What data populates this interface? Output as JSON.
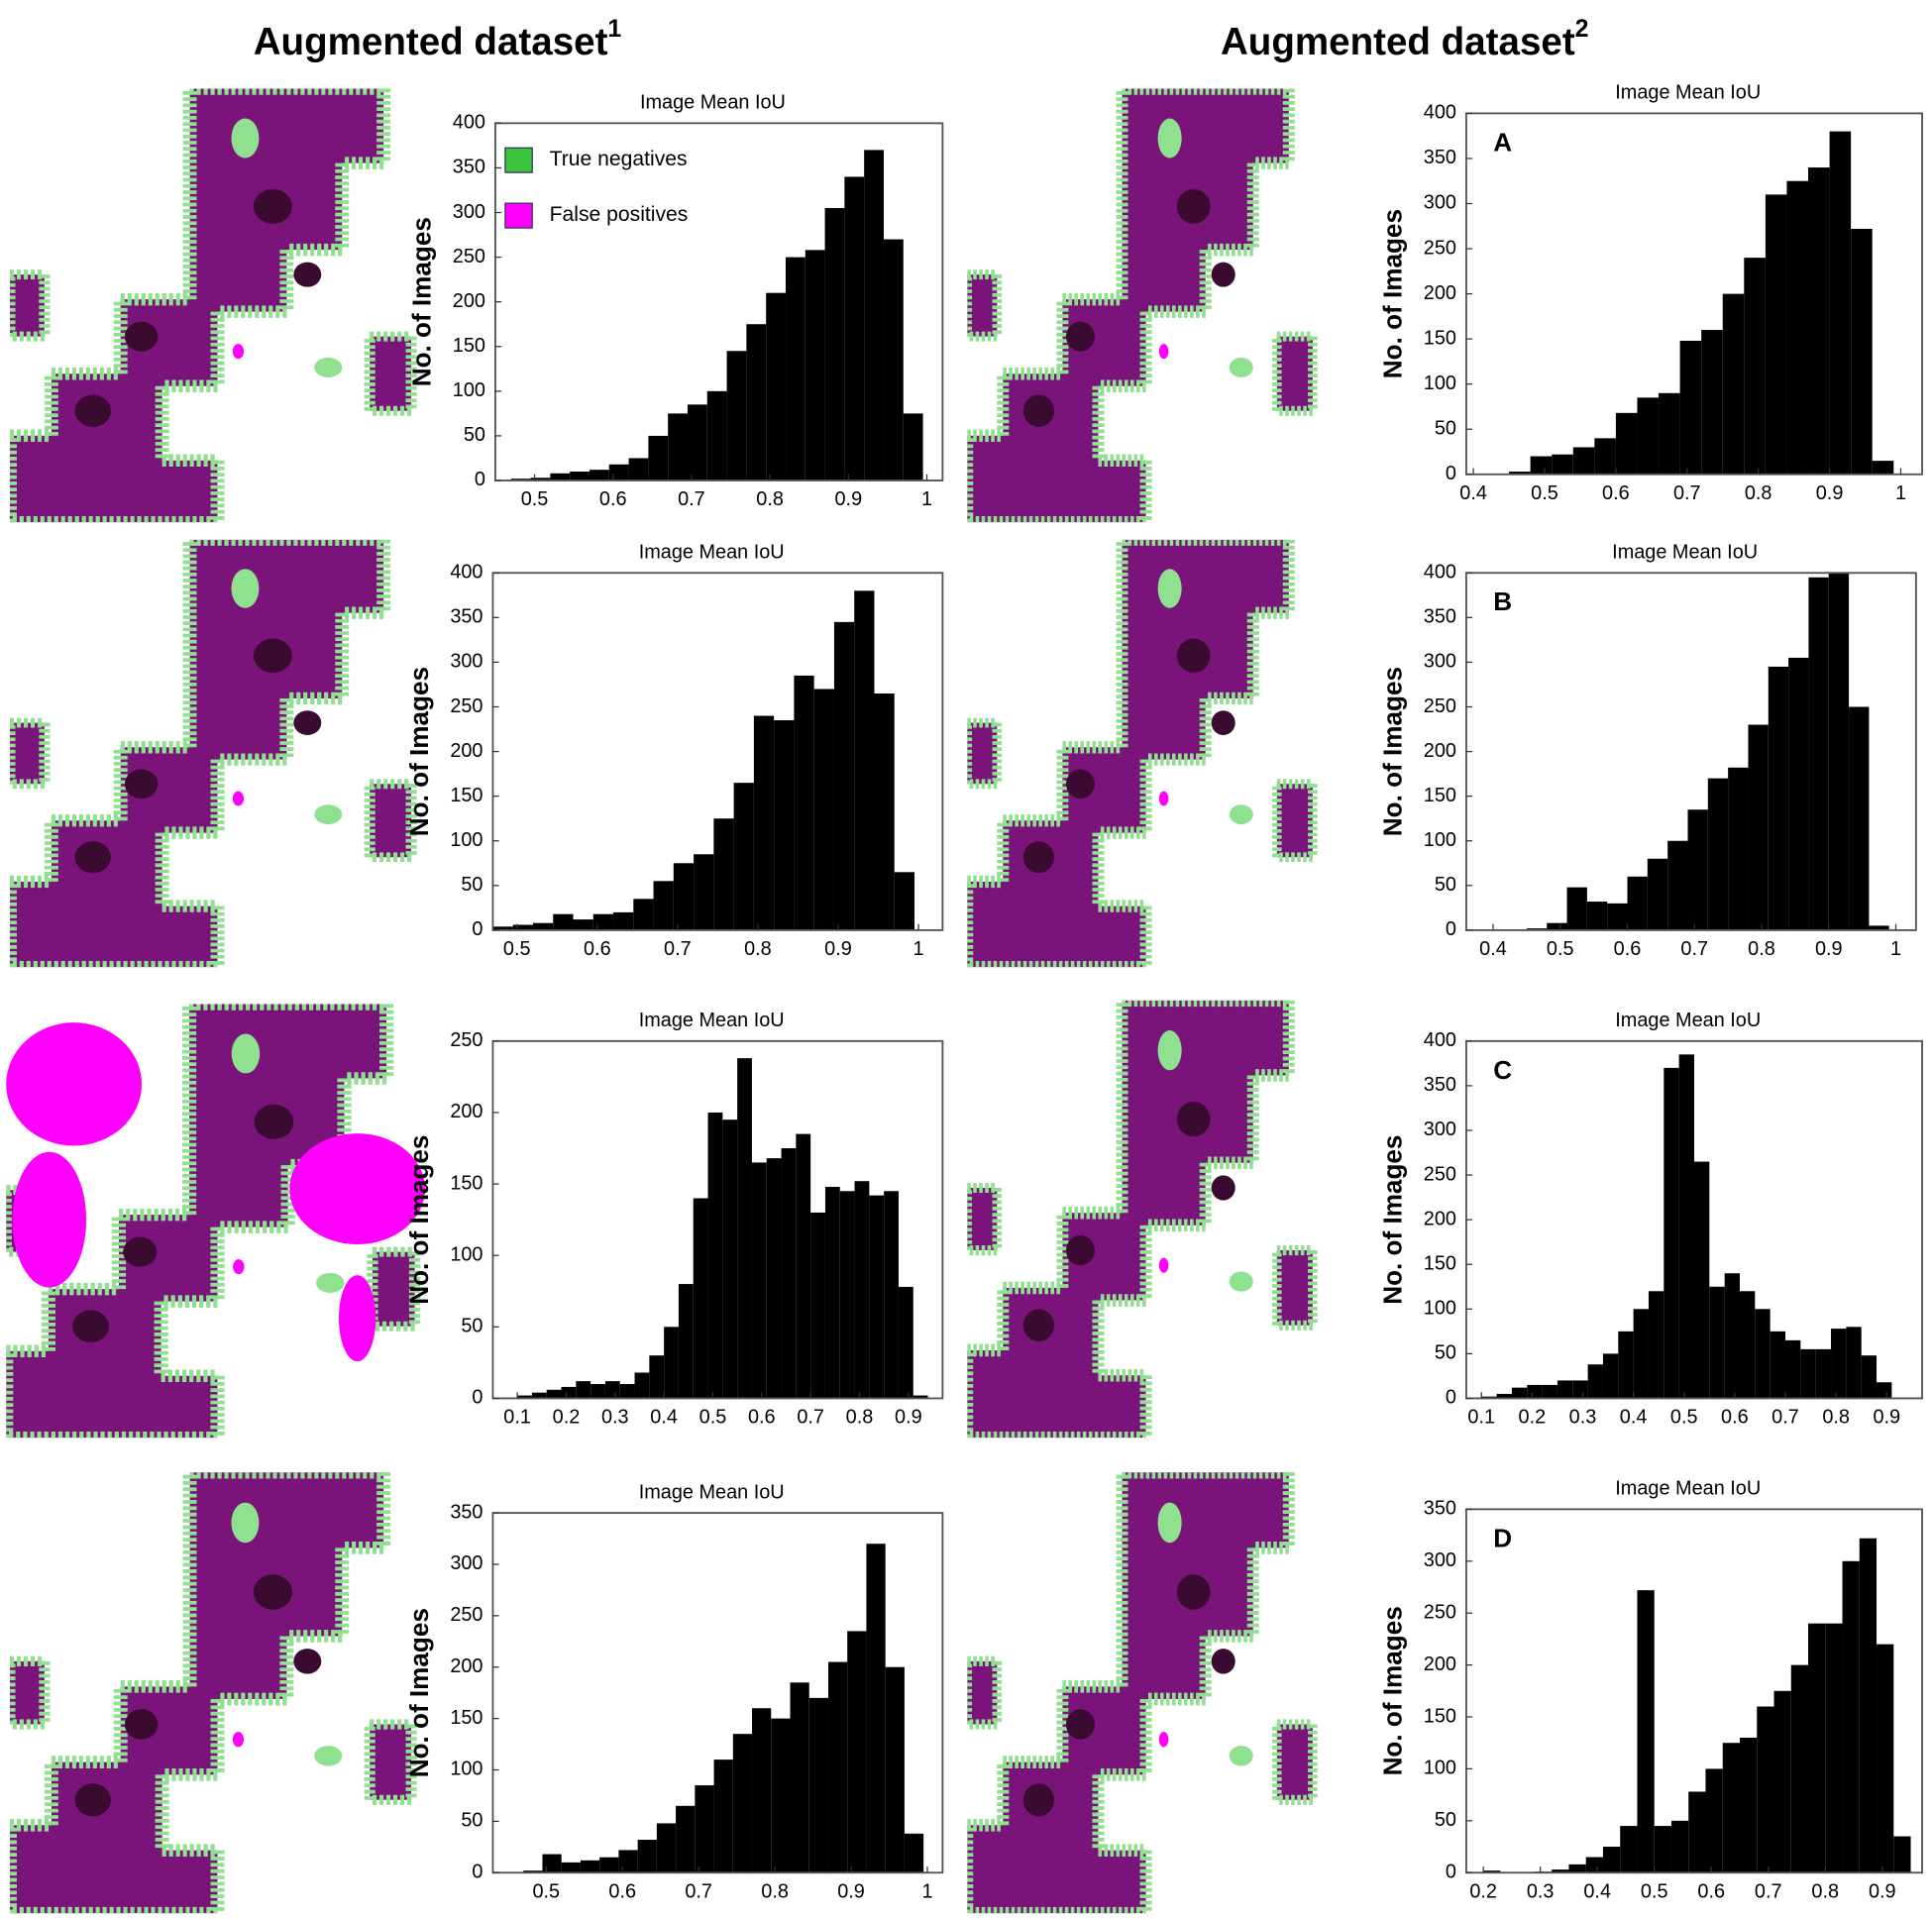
{
  "headings": [
    {
      "text": "Augmented dataset",
      "sup": "1"
    },
    {
      "text": "Augmented dataset",
      "sup": "2"
    }
  ],
  "chart_data": [
    {
      "type": "histogram",
      "title": "Image Mean IoU",
      "ylabel": "No. of Images",
      "color": "#000000",
      "legend": [
        {
          "name": "True negatives",
          "color": "#3cc43c"
        },
        {
          "name": "False positives",
          "color": "#ff00ff"
        }
      ],
      "bins": [
        0.47,
        0.495,
        0.52,
        0.545,
        0.57,
        0.595,
        0.62,
        0.645,
        0.67,
        0.695,
        0.72,
        0.745,
        0.77,
        0.795,
        0.82,
        0.845,
        0.87,
        0.895,
        0.92,
        0.945,
        0.97,
        0.995
      ],
      "values": [
        2,
        3,
        8,
        10,
        12,
        18,
        25,
        50,
        75,
        85,
        100,
        145,
        175,
        210,
        250,
        258,
        305,
        340,
        370,
        270,
        75
      ],
      "xlim": [
        0.45,
        1.02
      ],
      "xticks": [
        0.5,
        0.6,
        0.7,
        0.8,
        0.9,
        1
      ],
      "ylim": [
        0,
        400
      ],
      "yticks": [
        0,
        50,
        100,
        150,
        200,
        250,
        300,
        350,
        400
      ]
    },
    {
      "type": "histogram",
      "title": "Image Mean IoU",
      "ylabel": "No. of Images",
      "label": "A",
      "color": "#000000",
      "bins": [
        0.45,
        0.48,
        0.51,
        0.54,
        0.57,
        0.6,
        0.63,
        0.66,
        0.69,
        0.72,
        0.75,
        0.78,
        0.81,
        0.84,
        0.87,
        0.9,
        0.93,
        0.96,
        0.99
      ],
      "values": [
        3,
        20,
        22,
        30,
        40,
        68,
        85,
        90,
        148,
        160,
        200,
        240,
        310,
        325,
        340,
        380,
        272,
        15
      ],
      "xlim": [
        0.39,
        1.03
      ],
      "xticks": [
        0.4,
        0.5,
        0.6,
        0.7,
        0.8,
        0.9,
        1
      ],
      "ylim": [
        0,
        400
      ],
      "yticks": [
        0,
        50,
        100,
        150,
        200,
        250,
        300,
        350,
        400
      ]
    },
    {
      "type": "histogram",
      "title": "Image Mean IoU",
      "ylabel": "No. of Images",
      "color": "#000000",
      "bins": [
        0.47,
        0.495,
        0.52,
        0.545,
        0.57,
        0.595,
        0.62,
        0.645,
        0.67,
        0.695,
        0.72,
        0.745,
        0.77,
        0.795,
        0.82,
        0.845,
        0.87,
        0.895,
        0.92,
        0.945,
        0.97,
        0.995
      ],
      "values": [
        4,
        6,
        8,
        18,
        12,
        18,
        20,
        35,
        55,
        75,
        85,
        125,
        165,
        240,
        235,
        285,
        270,
        345,
        380,
        265,
        65
      ],
      "xlim": [
        0.47,
        1.03
      ],
      "xticks": [
        0.5,
        0.6,
        0.7,
        0.8,
        0.9,
        1
      ],
      "ylim": [
        0,
        400
      ],
      "yticks": [
        0,
        50,
        100,
        150,
        200,
        250,
        300,
        350,
        400
      ]
    },
    {
      "type": "histogram",
      "title": "Image Mean IoU",
      "ylabel": "No. of Images",
      "label": "B",
      "color": "#000000",
      "bins": [
        0.42,
        0.45,
        0.48,
        0.51,
        0.54,
        0.57,
        0.6,
        0.63,
        0.66,
        0.69,
        0.72,
        0.75,
        0.78,
        0.81,
        0.84,
        0.87,
        0.9,
        0.93,
        0.96,
        0.99
      ],
      "values": [
        1,
        2,
        8,
        48,
        32,
        30,
        60,
        80,
        100,
        135,
        170,
        182,
        230,
        295,
        305,
        395,
        400,
        250,
        5
      ],
      "xlim": [
        0.36,
        1.03
      ],
      "xticks": [
        0.4,
        0.5,
        0.6,
        0.7,
        0.8,
        0.9,
        1
      ],
      "ylim": [
        0,
        400
      ],
      "yticks": [
        0,
        50,
        100,
        150,
        200,
        250,
        300,
        350,
        400
      ]
    },
    {
      "type": "histogram",
      "title": "Image Mean IoU",
      "ylabel": "No. of Images",
      "color": "#000000",
      "bins": [
        0.1,
        0.13,
        0.16,
        0.19,
        0.22,
        0.25,
        0.28,
        0.31,
        0.34,
        0.37,
        0.4,
        0.43,
        0.46,
        0.49,
        0.52,
        0.55,
        0.58,
        0.61,
        0.64,
        0.67,
        0.7,
        0.73,
        0.76,
        0.79,
        0.82,
        0.85,
        0.88,
        0.91,
        0.94
      ],
      "values": [
        2,
        4,
        6,
        8,
        12,
        10,
        12,
        10,
        18,
        30,
        50,
        80,
        140,
        200,
        195,
        238,
        165,
        168,
        175,
        185,
        130,
        148,
        145,
        152,
        142,
        145,
        78,
        2
      ],
      "xlim": [
        0.05,
        0.97
      ],
      "xticks": [
        0.1,
        0.2,
        0.3,
        0.4,
        0.5,
        0.6,
        0.7,
        0.8,
        0.9
      ],
      "ylim": [
        0,
        250
      ],
      "yticks": [
        0,
        50,
        100,
        150,
        200,
        250
      ]
    },
    {
      "type": "histogram",
      "title": "Image Mean IoU",
      "ylabel": "No. of Images",
      "label": "C",
      "color": "#000000",
      "bins": [
        0.07,
        0.1,
        0.13,
        0.16,
        0.19,
        0.22,
        0.25,
        0.28,
        0.31,
        0.34,
        0.37,
        0.4,
        0.43,
        0.46,
        0.49,
        0.52,
        0.55,
        0.58,
        0.61,
        0.64,
        0.67,
        0.7,
        0.73,
        0.76,
        0.79,
        0.82,
        0.85,
        0.88,
        0.91
      ],
      "values": [
        1,
        2,
        5,
        12,
        15,
        15,
        20,
        20,
        38,
        50,
        75,
        100,
        120,
        370,
        385,
        265,
        125,
        140,
        120,
        100,
        75,
        65,
        55,
        55,
        78,
        80,
        48,
        18
      ],
      "xlim": [
        0.07,
        0.97
      ],
      "xticks": [
        0.1,
        0.2,
        0.3,
        0.4,
        0.5,
        0.6,
        0.7,
        0.8,
        0.9
      ],
      "ylim": [
        0,
        400
      ],
      "yticks": [
        0,
        50,
        100,
        150,
        200,
        250,
        300,
        350,
        400
      ]
    },
    {
      "type": "histogram",
      "title": "Image Mean IoU",
      "ylabel": "No. of Images",
      "color": "#000000",
      "bins": [
        0.47,
        0.495,
        0.52,
        0.545,
        0.57,
        0.595,
        0.62,
        0.645,
        0.67,
        0.695,
        0.72,
        0.745,
        0.77,
        0.795,
        0.82,
        0.845,
        0.87,
        0.895,
        0.92,
        0.945,
        0.97,
        0.995
      ],
      "values": [
        2,
        18,
        10,
        12,
        15,
        22,
        32,
        48,
        65,
        85,
        110,
        135,
        160,
        150,
        185,
        170,
        205,
        235,
        320,
        200,
        38
      ],
      "xlim": [
        0.43,
        1.02
      ],
      "xticks": [
        0.5,
        0.6,
        0.7,
        0.8,
        0.9,
        1
      ],
      "ylim": [
        0,
        350
      ],
      "yticks": [
        0,
        50,
        100,
        150,
        200,
        250,
        300,
        350
      ]
    },
    {
      "type": "histogram",
      "title": "Image Mean IoU",
      "ylabel": "No. of Images",
      "label": "D",
      "color": "#000000",
      "bins": [
        0.2,
        0.23,
        0.26,
        0.29,
        0.32,
        0.35,
        0.38,
        0.41,
        0.44,
        0.47,
        0.5,
        0.53,
        0.56,
        0.59,
        0.62,
        0.65,
        0.68,
        0.71,
        0.74,
        0.77,
        0.8,
        0.83,
        0.86,
        0.89,
        0.92,
        0.95
      ],
      "values": [
        2,
        0,
        0,
        1,
        3,
        8,
        15,
        25,
        45,
        272,
        45,
        50,
        78,
        100,
        125,
        130,
        160,
        175,
        200,
        240,
        240,
        300,
        322,
        220,
        35
      ],
      "xlim": [
        0.17,
        0.97
      ],
      "xticks": [
        0.2,
        0.3,
        0.4,
        0.5,
        0.6,
        0.7,
        0.8,
        0.9
      ],
      "ylim": [
        0,
        350
      ],
      "yticks": [
        0,
        50,
        100,
        150,
        200,
        250,
        300,
        350
      ]
    }
  ]
}
